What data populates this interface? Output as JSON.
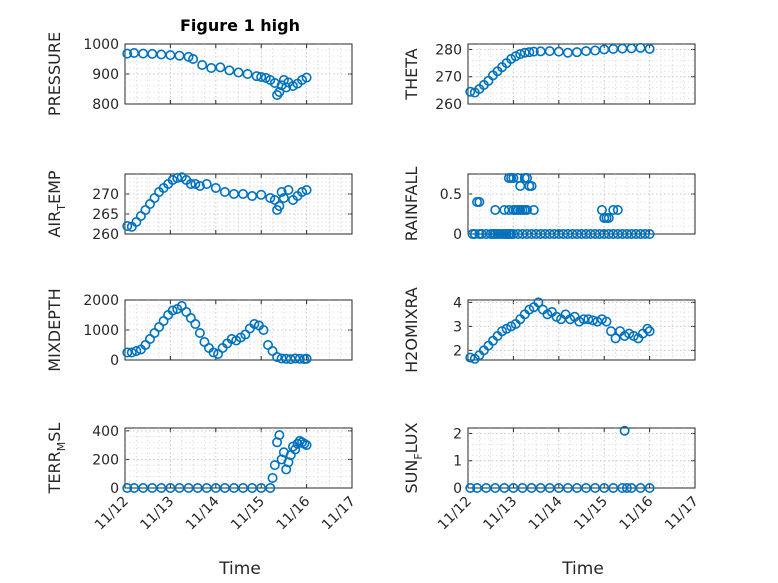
{
  "figure": {
    "title": "Figure 1 high",
    "xlabel": "Time",
    "x_tick_labels": [
      "11/12",
      "11/13",
      "11/14",
      "11/15",
      "11/16",
      "11/17"
    ]
  },
  "colors": {
    "marker": "#0072bd",
    "axis": "#262626",
    "grid": "#c8c8c8"
  },
  "chart_data": [
    {
      "type": "scatter",
      "ylabel": "PRESSURE",
      "ylim": [
        800,
        1000
      ],
      "yticks": [
        "800",
        "900",
        "1000"
      ],
      "xlim": [
        0,
        5
      ],
      "grid": true,
      "x": [
        0.05,
        0.2,
        0.4,
        0.6,
        0.8,
        1.0,
        1.2,
        1.4,
        1.5,
        1.7,
        1.9,
        2.1,
        2.3,
        2.5,
        2.7,
        2.9,
        3.0,
        3.1,
        3.2,
        3.3,
        3.35,
        3.4,
        3.45,
        3.5,
        3.55,
        3.6,
        3.7,
        3.8,
        3.9,
        4.0
      ],
      "y": [
        968,
        970,
        968,
        967,
        965,
        963,
        961,
        957,
        950,
        930,
        920,
        922,
        912,
        905,
        900,
        893,
        890,
        887,
        880,
        870,
        830,
        840,
        862,
        880,
        855,
        872,
        860,
        868,
        880,
        888
      ]
    },
    {
      "type": "scatter",
      "ylabel": "THETA",
      "ylim": [
        260,
        282
      ],
      "yticks": [
        "260",
        "270",
        "280"
      ],
      "xlim": [
        0,
        5
      ],
      "grid": true,
      "x": [
        0.05,
        0.15,
        0.25,
        0.35,
        0.45,
        0.55,
        0.65,
        0.75,
        0.85,
        0.95,
        1.05,
        1.15,
        1.25,
        1.35,
        1.45,
        1.6,
        1.8,
        2.0,
        2.2,
        2.4,
        2.6,
        2.8,
        3.0,
        3.2,
        3.4,
        3.6,
        3.8,
        4.0
      ],
      "y": [
        264.5,
        264.2,
        265.5,
        267,
        268.5,
        270.5,
        272,
        273.5,
        275,
        276.5,
        277.5,
        278.3,
        278.8,
        279,
        279.2,
        279.3,
        279.4,
        279.2,
        278.8,
        279,
        279.4,
        279.6,
        280,
        280.2,
        280.3,
        280.4,
        280.6,
        280.2
      ]
    },
    {
      "type": "scatter",
      "ylabel": "AIR_TEMP",
      "ylim": [
        260,
        275
      ],
      "yticks": [
        "260",
        "265",
        "270"
      ],
      "xlim": [
        0,
        5
      ],
      "grid": true,
      "x": [
        0.05,
        0.15,
        0.25,
        0.35,
        0.45,
        0.55,
        0.65,
        0.75,
        0.85,
        0.95,
        1.05,
        1.15,
        1.25,
        1.35,
        1.45,
        1.55,
        1.65,
        1.8,
        2.0,
        2.2,
        2.4,
        2.6,
        2.8,
        3.0,
        3.2,
        3.3,
        3.35,
        3.4,
        3.45,
        3.5,
        3.6,
        3.7,
        3.8,
        3.9,
        4.0
      ],
      "y": [
        262,
        261.8,
        263,
        264.5,
        266,
        267.5,
        269,
        270.5,
        271.5,
        272.5,
        273.5,
        274,
        274.2,
        273.5,
        272.5,
        272.5,
        272,
        272.5,
        271.5,
        270.5,
        270,
        270,
        269.5,
        269.8,
        269,
        268.5,
        266,
        267,
        270.5,
        269,
        271,
        268.5,
        269.5,
        270.5,
        271
      ]
    },
    {
      "type": "scatter",
      "ylabel": "RAINFALL",
      "ylim": [
        0,
        0.75
      ],
      "yticks": [
        "0",
        "0.5"
      ],
      "xlim": [
        0,
        5
      ],
      "grid": true,
      "x": [
        0.1,
        0.15,
        0.25,
        0.3,
        0.4,
        0.5,
        0.55,
        0.6,
        0.65,
        0.7,
        0.75,
        0.8,
        0.85,
        0.9,
        0.95,
        1.0,
        1.1,
        1.2,
        1.3,
        1.4,
        1.5,
        1.6,
        1.7,
        1.8,
        1.9,
        2.0,
        2.1,
        2.2,
        2.3,
        2.4,
        2.5,
        2.6,
        2.7,
        2.8,
        2.9,
        3.0,
        3.1,
        3.2,
        3.3,
        3.4,
        3.5,
        3.6,
        3.7,
        3.8,
        3.9,
        4.0,
        0.6,
        0.8,
        0.9,
        1.0,
        1.05,
        1.1,
        1.15,
        1.2,
        1.25,
        1.3,
        0.2,
        0.25,
        0.9,
        0.95,
        1.0,
        1.1,
        1.15,
        1.25,
        1.3,
        1.35,
        1.4,
        1.45,
        2.95,
        3.0,
        3.05,
        3.1,
        3.2,
        3.3
      ],
      "y": [
        0,
        0,
        0,
        0,
        0,
        0,
        0,
        0,
        0,
        0,
        0,
        0,
        0,
        0,
        0,
        0,
        0,
        0,
        0,
        0,
        0,
        0,
        0,
        0,
        0,
        0,
        0,
        0,
        0,
        0,
        0,
        0,
        0,
        0,
        0,
        0,
        0,
        0,
        0,
        0,
        0,
        0,
        0,
        0,
        0,
        0,
        0.3,
        0.3,
        0.3,
        0.3,
        0.3,
        0.3,
        0.3,
        0.3,
        0.3,
        0.3,
        0.4,
        0.4,
        0.7,
        0.7,
        0.7,
        0.7,
        0.6,
        0.7,
        0.7,
        0.6,
        0.6,
        0.3,
        0.3,
        0.2,
        0.2,
        0.2,
        0.3,
        0.3
      ]
    },
    {
      "type": "scatter",
      "ylabel": "MIXDEPTH",
      "ylim": [
        0,
        2000
      ],
      "yticks": [
        "0",
        "1000",
        "2000"
      ],
      "xlim": [
        0,
        5
      ],
      "grid": true,
      "x": [
        0.05,
        0.15,
        0.25,
        0.35,
        0.45,
        0.55,
        0.65,
        0.75,
        0.85,
        0.95,
        1.05,
        1.15,
        1.25,
        1.35,
        1.45,
        1.55,
        1.65,
        1.75,
        1.85,
        1.95,
        2.05,
        2.15,
        2.25,
        2.35,
        2.45,
        2.55,
        2.65,
        2.75,
        2.85,
        2.95,
        3.05,
        3.15,
        3.25,
        3.35,
        3.45,
        3.55,
        3.65,
        3.75,
        3.85,
        3.95,
        4.0
      ],
      "y": [
        250,
        250,
        300,
        350,
        500,
        700,
        900,
        1100,
        1300,
        1500,
        1650,
        1700,
        1800,
        1600,
        1400,
        1200,
        900,
        600,
        400,
        250,
        200,
        400,
        550,
        700,
        650,
        750,
        850,
        1050,
        1200,
        1150,
        1000,
        500,
        300,
        100,
        50,
        40,
        30,
        50,
        40,
        30,
        40
      ]
    },
    {
      "type": "scatter",
      "ylabel": "H2OMIXRA",
      "ylim": [
        1.6,
        4.1
      ],
      "yticks": [
        "2",
        "3",
        "4"
      ],
      "xlim": [
        0,
        5
      ],
      "grid": true,
      "x": [
        0.05,
        0.15,
        0.25,
        0.35,
        0.45,
        0.55,
        0.65,
        0.75,
        0.85,
        0.95,
        1.05,
        1.15,
        1.25,
        1.35,
        1.45,
        1.55,
        1.65,
        1.75,
        1.85,
        1.95,
        2.05,
        2.15,
        2.25,
        2.35,
        2.45,
        2.55,
        2.65,
        2.75,
        2.85,
        2.95,
        3.05,
        3.15,
        3.25,
        3.35,
        3.45,
        3.55,
        3.65,
        3.75,
        3.85,
        3.95,
        4.0
      ],
      "y": [
        1.7,
        1.65,
        1.8,
        2.0,
        2.2,
        2.4,
        2.6,
        2.8,
        2.9,
        3.0,
        3.1,
        3.3,
        3.5,
        3.7,
        3.8,
        4.0,
        3.7,
        3.5,
        3.6,
        3.4,
        3.3,
        3.5,
        3.3,
        3.4,
        3.2,
        3.3,
        3.3,
        3.25,
        3.2,
        3.3,
        3.2,
        2.8,
        2.5,
        2.8,
        2.6,
        2.7,
        2.6,
        2.5,
        2.7,
        2.9,
        2.8
      ]
    },
    {
      "type": "scatter",
      "ylabel": "TERR_MSL",
      "ylim": [
        0,
        420
      ],
      "yticks": [
        "0",
        "200",
        "400"
      ],
      "xlim": [
        0,
        5
      ],
      "grid": true,
      "x": [
        0.05,
        0.2,
        0.4,
        0.6,
        0.8,
        1.0,
        1.2,
        1.4,
        1.6,
        1.8,
        2.0,
        2.2,
        2.4,
        2.6,
        2.8,
        3.0,
        3.2,
        3.25,
        3.3,
        3.35,
        3.4,
        3.45,
        3.5,
        3.55,
        3.6,
        3.65,
        3.7,
        3.75,
        3.8,
        3.85,
        3.9,
        3.95,
        4.0
      ],
      "y": [
        0,
        0,
        0,
        0,
        0,
        0,
        0,
        0,
        0,
        0,
        0,
        0,
        0,
        0,
        0,
        0,
        0,
        70,
        160,
        320,
        370,
        200,
        250,
        130,
        180,
        230,
        290,
        270,
        310,
        330,
        320,
        310,
        300
      ]
    },
    {
      "type": "scatter",
      "ylabel": "SUN_FLUX",
      "ylim": [
        0,
        2.2
      ],
      "yticks": [
        "0",
        "1",
        "2"
      ],
      "xlim": [
        0,
        5
      ],
      "grid": true,
      "x": [
        0.05,
        0.2,
        0.4,
        0.6,
        0.8,
        1.0,
        1.2,
        1.4,
        1.6,
        1.8,
        2.0,
        2.2,
        2.4,
        2.6,
        2.8,
        3.0,
        3.2,
        3.4,
        3.45,
        3.5,
        3.6,
        3.8,
        4.0
      ],
      "y": [
        0,
        0,
        0,
        0,
        0,
        0,
        0,
        0,
        0,
        0,
        0,
        0,
        0,
        0,
        0,
        0,
        0,
        0,
        2.1,
        0,
        0,
        0,
        0
      ]
    }
  ]
}
